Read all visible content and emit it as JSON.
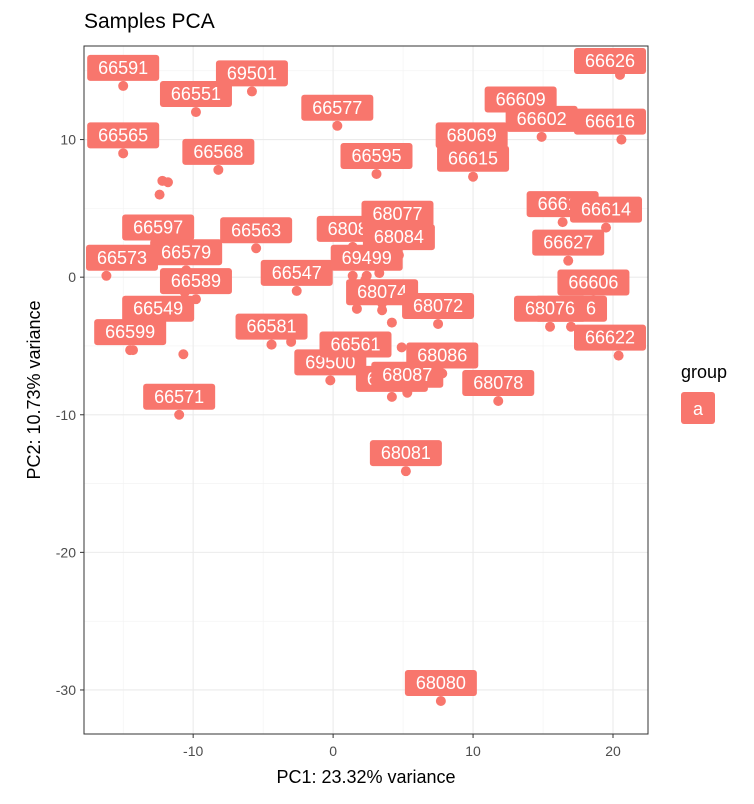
{
  "chart_data": {
    "type": "scatter",
    "title": "Samples PCA",
    "xlabel": "PC1: 23.32% variance",
    "ylabel": "PC2: 10.73% variance",
    "xlim": [
      -17.8,
      22.5
    ],
    "ylim": [
      -33.2,
      16.8
    ],
    "xticks": [
      -10,
      0,
      10,
      20
    ],
    "yticks": [
      -30,
      -20,
      -10,
      0,
      10
    ],
    "grid": true,
    "legend": {
      "title": "group",
      "entries": [
        "a"
      ],
      "position": "right"
    },
    "color": "#F8766D",
    "points": [
      {
        "label": "66591",
        "x": -15.0,
        "y": 13.9
      },
      {
        "label": "69501",
        "x": -5.8,
        "y": 13.5
      },
      {
        "label": "66551",
        "x": -9.8,
        "y": 12.0
      },
      {
        "label": "66565",
        "x": -15.0,
        "y": 9.0
      },
      {
        "label": "66568",
        "x": -8.2,
        "y": 7.8
      },
      {
        "label": "66597",
        "x": -12.5,
        "y": 2.3
      },
      {
        "label": "66579",
        "x": -10.5,
        "y": 0.5
      },
      {
        "label": "66573",
        "x": -16.2,
        "y": 0.1
      },
      {
        "label": "66549",
        "x": -12.5,
        "y": -3.6
      },
      {
        "label": "66589",
        "x": -9.8,
        "y": -1.6
      },
      {
        "label": "66599",
        "x": -14.5,
        "y": -5.3
      },
      {
        "label": "66571",
        "x": -11.0,
        "y": -10.0
      },
      {
        "label": "66563",
        "x": -5.5,
        "y": 2.1
      },
      {
        "label": "66547",
        "x": -2.6,
        "y": -1.0
      },
      {
        "label": "66581",
        "x": -4.4,
        "y": -4.9
      },
      {
        "label": "69500",
        "x": -0.2,
        "y": -7.5
      },
      {
        "label": "66577",
        "x": 0.3,
        "y": 11.0
      },
      {
        "label": "66595",
        "x": 3.1,
        "y": 7.5
      },
      {
        "label": "68085",
        "x": 1.4,
        "y": 2.2
      },
      {
        "label": "69499",
        "x": 2.4,
        "y": 0.1
      },
      {
        "label": "66561",
        "x": 1.6,
        "y": -6.2
      },
      {
        "label": "68074",
        "x": 3.5,
        "y": -2.4
      },
      {
        "label": "68069",
        "x": 9.9,
        "y": 9.0
      },
      {
        "label": "68077",
        "x": 4.6,
        "y": 3.3
      },
      {
        "label": "68084",
        "x": 4.7,
        "y": 1.6
      },
      {
        "label": "68071",
        "x": 4.2,
        "y": -8.7
      },
      {
        "label": "68081",
        "x": 5.2,
        "y": -14.1
      },
      {
        "label": "68072",
        "x": 7.5,
        "y": -3.4
      },
      {
        "label": "68086",
        "x": 7.8,
        "y": -7.0
      },
      {
        "label": "68087",
        "x": 5.3,
        "y": -8.4
      },
      {
        "label": "66609",
        "x": 13.4,
        "y": 11.6
      },
      {
        "label": "66615",
        "x": 10.0,
        "y": 7.3
      },
      {
        "label": "66602",
        "x": 14.9,
        "y": 10.2
      },
      {
        "label": "66626",
        "x": 20.5,
        "y": 14.7
      },
      {
        "label": "66616",
        "x": 20.6,
        "y": 10.0
      },
      {
        "label": "66618",
        "x": 16.4,
        "y": 4.0
      },
      {
        "label": "66614",
        "x": 19.5,
        "y": 3.6
      },
      {
        "label": "66627",
        "x": 16.8,
        "y": 1.2
      },
      {
        "label": "66606",
        "x": 18.6,
        "y": -1.7
      },
      {
        "label": "66622",
        "x": 20.4,
        "y": -5.7
      },
      {
        "label": "66576",
        "x": 17.0,
        "y": -3.6
      },
      {
        "label": "68076",
        "x": 15.5,
        "y": -3.6
      },
      {
        "label": "68078",
        "x": 11.8,
        "y": -9.0
      },
      {
        "label": "68080",
        "x": 7.7,
        "y": -30.8
      },
      {
        "label": "",
        "x": -15.2,
        "y": 1.1
      },
      {
        "label": "",
        "x": -14.4,
        "y": 4.0
      },
      {
        "label": "",
        "x": -12.2,
        "y": 7.0
      },
      {
        "label": "",
        "x": -12.4,
        "y": 6.0
      },
      {
        "label": "",
        "x": -11.8,
        "y": 6.9
      },
      {
        "label": "",
        "x": -11.6,
        "y": -0.7
      },
      {
        "label": "",
        "x": -10.6,
        "y": -1.1
      },
      {
        "label": "",
        "x": -10.7,
        "y": -2.5
      },
      {
        "label": "",
        "x": -10.7,
        "y": -5.6
      },
      {
        "label": "",
        "x": -14.3,
        "y": -5.3
      },
      {
        "label": "",
        "x": -3.0,
        "y": -4.7
      },
      {
        "label": "",
        "x": -4.4,
        "y": -4.9
      },
      {
        "label": "",
        "x": 1.4,
        "y": 0.1
      },
      {
        "label": "",
        "x": 2.3,
        "y": -0.2
      },
      {
        "label": "",
        "x": 3.3,
        "y": 0.3
      },
      {
        "label": "",
        "x": 3.5,
        "y": -1.9
      },
      {
        "label": "",
        "x": 1.7,
        "y": -2.3
      },
      {
        "label": "",
        "x": 4.2,
        "y": -3.3
      },
      {
        "label": "",
        "x": 4.9,
        "y": -5.1
      },
      {
        "label": "",
        "x": 4.8,
        "y": -6.6
      },
      {
        "label": "",
        "x": 3.8,
        "y": 2.4
      },
      {
        "label": "",
        "x": 4.6,
        "y": 1.6
      }
    ]
  }
}
